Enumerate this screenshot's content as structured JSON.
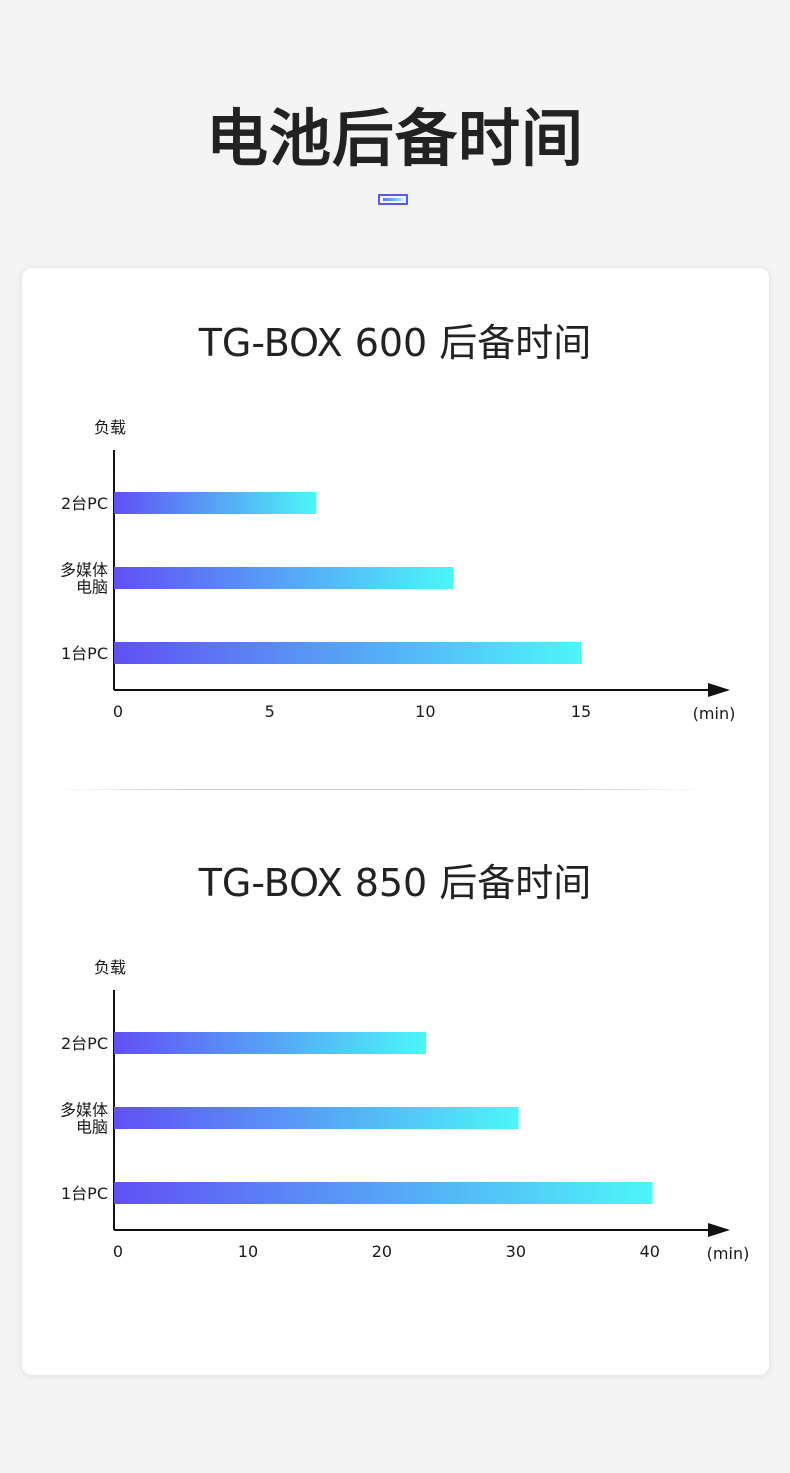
{
  "header": {
    "title": "电池后备时间"
  },
  "colors": {
    "bar_start": "#6150f5",
    "bar_end": "#4cf6f8",
    "axis": "#111111",
    "background": "#f4f4f4",
    "card": "#ffffff"
  },
  "chart_data": [
    {
      "type": "bar",
      "orientation": "horizontal",
      "title": "TG-BOX 600 后备时间",
      "ylabel": "负载",
      "xlabel_unit": "(min)",
      "categories": [
        [
          "2台PC"
        ],
        [
          "多媒体",
          "电脑"
        ],
        [
          "1台PC"
        ]
      ],
      "values": [
        6.5,
        10.9,
        15
      ],
      "xticks": [
        0,
        5,
        10,
        15
      ],
      "xlim": [
        0,
        18.5
      ]
    },
    {
      "type": "bar",
      "orientation": "horizontal",
      "title": "TG-BOX 850 后备时间",
      "ylabel": "负载",
      "xlabel_unit": "(min)",
      "categories": [
        [
          "2台PC"
        ],
        [
          "多媒体",
          "电脑"
        ],
        [
          "1台PC"
        ]
      ],
      "values": [
        23.3,
        30.2,
        40.2
      ],
      "xticks": [
        0,
        10,
        20,
        30,
        40
      ],
      "xlim": [
        0,
        43
      ]
    }
  ]
}
